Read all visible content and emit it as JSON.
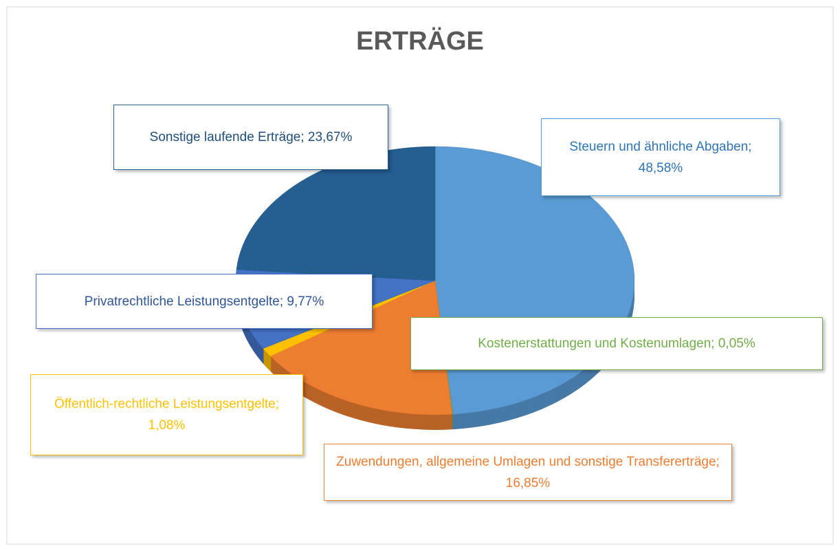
{
  "chart_data": {
    "type": "pie",
    "title": "ERTRÄGE",
    "values": [
      48.58,
      0.05,
      16.85,
      1.08,
      9.77,
      23.67
    ],
    "value_labels": [
      "Steuern und ähnliche Abgaben; 48,58%",
      "Kostenerstattungen und Kostenumlagen; 0,05%",
      "Zuwendungen, allgemeine Umlagen und sonstige Transfererträge; 16,85%",
      "Öffentlich-rechtliche Leistungsentgelte; 1,08%",
      "Privatrechtliche Leistungsentgelte; 9,77%",
      "Sonstige laufende Erträge; 23,67%"
    ],
    "colors": [
      "#5b9bd5",
      "#70ad47",
      "#ed7d31",
      "#ffc000",
      "#4472c4",
      "#255e91"
    ]
  }
}
